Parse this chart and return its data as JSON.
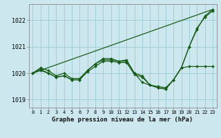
{
  "title": "Graphe pression niveau de la mer (hPa)",
  "bg_color": "#cce8ee",
  "grid_color": "#99ccd6",
  "line_color": "#1a5c1a",
  "xlim": [
    -0.5,
    23.5
  ],
  "ylim": [
    1018.7,
    1022.6
  ],
  "yticks": [
    1019,
    1020,
    1021,
    1022
  ],
  "xtick_labels": [
    "0",
    "1",
    "2",
    "3",
    "4",
    "5",
    "6",
    "7",
    "8",
    "9",
    "10",
    "11",
    "12",
    "13",
    "14",
    "15",
    "16",
    "17",
    "18",
    "19",
    "20",
    "21",
    "22",
    "23"
  ],
  "series": [
    {
      "x": [
        0,
        1,
        2,
        3,
        4,
        5,
        6,
        7,
        8,
        9,
        10,
        11,
        12,
        13,
        14,
        15,
        16,
        17,
        18,
        19,
        20,
        21,
        22,
        23
      ],
      "y": [
        1020.0,
        1020.2,
        1020.1,
        1019.9,
        1020.0,
        1019.8,
        1019.8,
        1020.1,
        1020.35,
        1020.5,
        1020.5,
        1020.45,
        1020.45,
        1020.0,
        1019.65,
        1019.55,
        1019.5,
        1019.45,
        1019.75,
        1020.2,
        1021.0,
        1021.65,
        1022.15,
        1022.4
      ],
      "marker": true
    },
    {
      "x": [
        0,
        1,
        2,
        3,
        4,
        5,
        6,
        7,
        8,
        9,
        10,
        11,
        12,
        13,
        14,
        15,
        16,
        17,
        18,
        19,
        20,
        21,
        22,
        23
      ],
      "y": [
        1020.0,
        1020.15,
        1020.0,
        1019.85,
        1019.9,
        1019.75,
        1019.75,
        1020.1,
        1020.35,
        1020.55,
        1020.55,
        1020.45,
        1020.5,
        1020.0,
        1019.9,
        1019.55,
        1019.45,
        1019.4,
        1019.75,
        1020.2,
        1021.0,
        1021.7,
        1022.1,
        1022.35
      ],
      "marker": true
    },
    {
      "x": [
        0,
        1,
        2,
        3,
        4,
        5,
        6,
        7,
        8,
        9,
        10,
        11,
        12,
        13,
        14,
        15,
        16,
        17,
        18,
        19,
        20,
        21,
        22,
        23
      ],
      "y": [
        1020.0,
        1020.1,
        1020.0,
        1019.85,
        1019.9,
        1019.75,
        1019.75,
        1020.05,
        1020.25,
        1020.45,
        1020.45,
        1020.4,
        1020.4,
        1019.95,
        1019.85,
        1019.55,
        1019.45,
        1019.4,
        1019.75,
        1020.2,
        1020.25,
        1020.25,
        1020.25,
        1020.25
      ],
      "marker": true
    },
    {
      "x": [
        0,
        23
      ],
      "y": [
        1020.0,
        1022.4
      ],
      "marker": false
    }
  ]
}
